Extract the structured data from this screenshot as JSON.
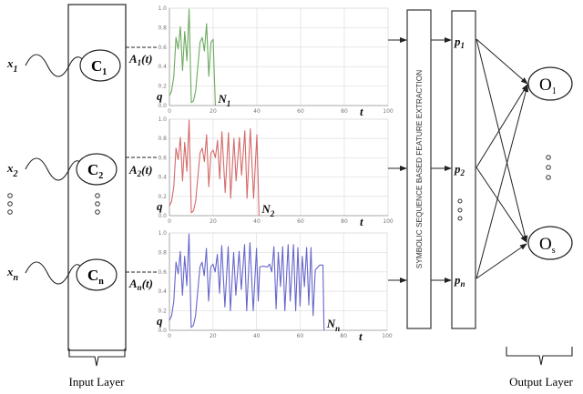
{
  "inputs": [
    {
      "x_label": "x",
      "x_sub": "1",
      "node": "C",
      "node_sub": "1",
      "signal": "A",
      "signal_sub": "1",
      "signal_suffix": "(t)"
    },
    {
      "x_label": "x",
      "x_sub": "2",
      "node": "C",
      "node_sub": "2",
      "signal": "A",
      "signal_sub": "2",
      "signal_suffix": "(t)"
    },
    {
      "x_label": "x",
      "x_sub": "n",
      "node": "C",
      "node_sub": "n",
      "signal": "A",
      "signal_sub": "n",
      "signal_suffix": "(t)"
    }
  ],
  "feature_box_label": "SYMBOLIC SEQUENCE BASED FEATURE EXTRACTION",
  "features": [
    {
      "label": "p",
      "sub": "1"
    },
    {
      "label": "p",
      "sub": "2"
    },
    {
      "label": "p",
      "sub": "n"
    }
  ],
  "outputs": [
    {
      "label": "O",
      "sub": "1"
    },
    {
      "label": "O",
      "sub": "s"
    }
  ],
  "input_layer_label": "Input Layer",
  "output_layer_label": "Output Layer",
  "chart_data": [
    {
      "type": "line",
      "color": "#6aaa5e",
      "xlim": [
        0,
        100
      ],
      "ylim": [
        0,
        1
      ],
      "xticks": [
        "0",
        "20",
        "40",
        "60",
        "80",
        "100"
      ],
      "yticks": [
        "0.0",
        "0.2",
        "0.4",
        "0.6",
        "0.8",
        "1.0"
      ],
      "xlabel": "t",
      "threshold_label": "q",
      "end_label": "N",
      "end_sub": "1",
      "grid": true,
      "points": [
        [
          0,
          0.1
        ],
        [
          1,
          0.15
        ],
        [
          2,
          0.3
        ],
        [
          3,
          0.7
        ],
        [
          4,
          0.58
        ],
        [
          5,
          0.81
        ],
        [
          6,
          0.36
        ],
        [
          7,
          0.76
        ],
        [
          8,
          0.46
        ],
        [
          9,
          0.99
        ],
        [
          10,
          0.03
        ],
        [
          11,
          0.05
        ],
        [
          12,
          0.15
        ],
        [
          13,
          0.4
        ],
        [
          14,
          0.65
        ],
        [
          15,
          0.7
        ],
        [
          16,
          0.56
        ],
        [
          17,
          0.84
        ],
        [
          18,
          0.3
        ],
        [
          19,
          0.65
        ],
        [
          20,
          0.68
        ],
        [
          21,
          0.0
        ]
      ]
    },
    {
      "type": "line",
      "color": "#d46a6a",
      "xlim": [
        0,
        100
      ],
      "ylim": [
        0,
        1
      ],
      "xticks": [
        "0",
        "20",
        "40",
        "60",
        "80",
        "100"
      ],
      "yticks": [
        "0.0",
        "0.2",
        "0.4",
        "0.6",
        "0.8",
        "1.0"
      ],
      "xlabel": "t",
      "threshold_label": "q",
      "end_label": "N",
      "end_sub": "2",
      "grid": true,
      "points": [
        [
          0,
          0.1
        ],
        [
          1,
          0.15
        ],
        [
          2,
          0.3
        ],
        [
          3,
          0.7
        ],
        [
          4,
          0.58
        ],
        [
          5,
          0.81
        ],
        [
          6,
          0.36
        ],
        [
          7,
          0.76
        ],
        [
          8,
          0.46
        ],
        [
          9,
          0.99
        ],
        [
          10,
          0.03
        ],
        [
          11,
          0.05
        ],
        [
          12,
          0.15
        ],
        [
          13,
          0.4
        ],
        [
          14,
          0.65
        ],
        [
          15,
          0.7
        ],
        [
          16,
          0.56
        ],
        [
          17,
          0.84
        ],
        [
          18,
          0.3
        ],
        [
          19,
          0.65
        ],
        [
          20,
          0.68
        ],
        [
          21,
          0.6
        ],
        [
          22,
          0.78
        ],
        [
          23,
          0.38
        ],
        [
          24,
          0.87
        ],
        [
          25.5,
          0.24
        ],
        [
          27,
          0.86
        ],
        [
          28,
          0.18
        ],
        [
          29.5,
          0.8
        ],
        [
          30.5,
          0.36
        ],
        [
          32,
          0.81
        ],
        [
          33,
          0.42
        ],
        [
          34.5,
          0.88
        ],
        [
          35.5,
          0.18
        ],
        [
          37,
          0.9
        ],
        [
          38.5,
          0.18
        ],
        [
          40,
          0.84
        ],
        [
          41,
          0.0
        ]
      ]
    },
    {
      "type": "line",
      "color": "#6666cc",
      "xlim": [
        0,
        100
      ],
      "ylim": [
        0,
        1
      ],
      "xticks": [
        "0",
        "20",
        "40",
        "60",
        "80",
        "100"
      ],
      "yticks": [
        "0.0",
        "0.2",
        "0.4",
        "0.6",
        "0.8",
        "1.0"
      ],
      "xlabel": "t",
      "threshold_label": "q",
      "end_label": "N",
      "end_sub": "n",
      "grid": true,
      "points": [
        [
          0,
          0.1
        ],
        [
          1,
          0.15
        ],
        [
          2,
          0.3
        ],
        [
          3,
          0.7
        ],
        [
          4,
          0.58
        ],
        [
          5,
          0.81
        ],
        [
          6,
          0.36
        ],
        [
          7,
          0.76
        ],
        [
          8,
          0.46
        ],
        [
          9,
          0.99
        ],
        [
          10,
          0.03
        ],
        [
          11,
          0.05
        ],
        [
          12,
          0.15
        ],
        [
          13,
          0.4
        ],
        [
          14,
          0.65
        ],
        [
          15,
          0.7
        ],
        [
          16,
          0.56
        ],
        [
          17,
          0.84
        ],
        [
          18,
          0.3
        ],
        [
          19,
          0.65
        ],
        [
          20,
          0.68
        ],
        [
          21,
          0.6
        ],
        [
          22,
          0.78
        ],
        [
          23,
          0.38
        ],
        [
          24,
          0.87
        ],
        [
          25.5,
          0.24
        ],
        [
          27,
          0.86
        ],
        [
          28,
          0.2
        ],
        [
          29.5,
          0.8
        ],
        [
          30.5,
          0.36
        ],
        [
          32,
          0.81
        ],
        [
          33,
          0.42
        ],
        [
          34.5,
          0.88
        ],
        [
          35.5,
          0.2
        ],
        [
          37,
          0.9
        ],
        [
          38.5,
          0.2
        ],
        [
          40,
          0.84
        ],
        [
          40.8,
          0.3
        ],
        [
          41.5,
          0.65
        ],
        [
          43,
          0.66
        ],
        [
          45,
          0.65
        ],
        [
          46,
          0.68
        ],
        [
          47,
          0.6
        ],
        [
          48,
          0.86
        ],
        [
          49,
          0.22
        ],
        [
          50,
          0.8
        ],
        [
          51,
          0.45
        ],
        [
          52,
          0.86
        ],
        [
          53,
          0.2
        ],
        [
          54.5,
          0.88
        ],
        [
          55.5,
          0.3
        ],
        [
          57,
          0.88
        ],
        [
          58,
          0.2
        ],
        [
          59,
          0.85
        ],
        [
          60,
          0.25
        ],
        [
          61,
          0.76
        ],
        [
          62,
          0.45
        ],
        [
          63,
          0.85
        ],
        [
          64,
          0.26
        ],
        [
          65,
          0.85
        ],
        [
          66,
          0.15
        ],
        [
          67,
          0.62
        ],
        [
          69,
          0.67
        ],
        [
          70.5,
          0.67
        ],
        [
          71,
          0.0
        ]
      ]
    }
  ]
}
